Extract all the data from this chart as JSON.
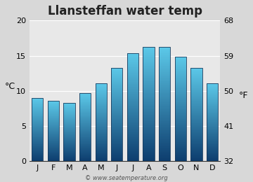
{
  "title": "Llansteffan water temp",
  "months": [
    "J",
    "F",
    "M",
    "A",
    "M",
    "J",
    "J",
    "A",
    "S",
    "O",
    "N",
    "D"
  ],
  "values": [
    9.0,
    8.6,
    8.3,
    9.7,
    11.1,
    13.3,
    15.4,
    16.2,
    16.2,
    14.9,
    13.3,
    11.1
  ],
  "ylim_left": [
    0,
    20
  ],
  "ylim_right_ticks": [
    32,
    41,
    50,
    59,
    68
  ],
  "ylim_left_ticks": [
    0,
    5,
    10,
    15,
    20
  ],
  "ylabel_left": "°C",
  "ylabel_right": "°F",
  "bar_color_top": "#5bc8e8",
  "bar_color_bottom": "#0d3d6e",
  "bar_edge_color": "#1a3a5c",
  "plot_bg_color": "#e8e8e8",
  "outer_bg_color": "#d8d8d8",
  "grid_color": "#ffffff",
  "watermark": "© www.seatemperature.org",
  "title_fontsize": 12,
  "tick_fontsize": 8,
  "label_fontsize": 9,
  "bar_width": 0.72
}
